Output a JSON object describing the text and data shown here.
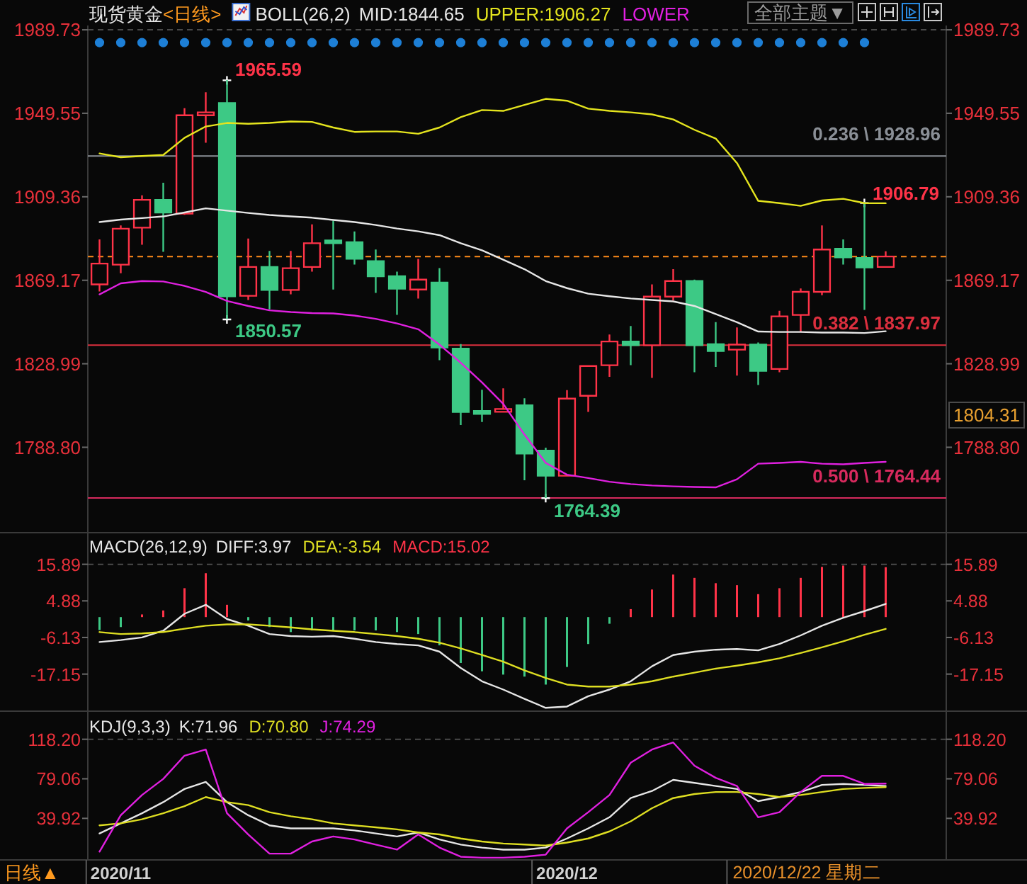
{
  "chart_data": [
    {
      "type": "candlestick",
      "title": "现货黄金",
      "subtitle": "<日线>",
      "legend_title": "BOLL(26,2)",
      "legend": "top",
      "tick_labels": "y",
      "categories": [
        null,
        null,
        null,
        null,
        null,
        null,
        null,
        null,
        null,
        null,
        null,
        null,
        null,
        null,
        null,
        null,
        null,
        null,
        null,
        null,
        null,
        null,
        null,
        null,
        null,
        null,
        null,
        null,
        null,
        null,
        null,
        null,
        null,
        null,
        null,
        null,
        null,
        null
      ],
      "ohlc": [
        [
          1867.2,
          1888.8,
          1863.8,
          1877.2
        ],
        [
          1876.7,
          1895.6,
          1872.6,
          1894.0
        ],
        [
          1894.5,
          1910.1,
          1886.3,
          1907.9
        ],
        [
          1907.9,
          1916.1,
          1882.9,
          1901.8
        ],
        [
          1901.3,
          1952.0,
          1900.7,
          1948.6
        ],
        [
          1948.6,
          1959.7,
          1935.4,
          1950.0
        ],
        [
          1954.5,
          1965.59,
          1850.57,
          1861.5
        ],
        [
          1861.7,
          1889.3,
          1859.7,
          1875.6
        ],
        [
          1875.6,
          1883.3,
          1855.2,
          1864.5
        ],
        [
          1864.5,
          1883.3,
          1862.4,
          1875.0
        ],
        [
          1875.6,
          1896.1,
          1873.3,
          1887.0
        ],
        [
          1887.9,
          1897.9,
          1864.7,
          1887.5
        ],
        [
          1887.5,
          1892.7,
          1876.7,
          1879.5
        ],
        [
          1878.4,
          1884.0,
          1863.1,
          1871.1
        ],
        [
          1871.1,
          1873.3,
          1852.5,
          1865.1
        ],
        [
          1864.7,
          1879.5,
          1860.4,
          1869.5
        ],
        [
          1868.1,
          1875.0,
          1830.7,
          1836.8
        ],
        [
          1836.3,
          1838.5,
          1799.5,
          1805.8
        ],
        [
          1805.8,
          1816.5,
          1801.0,
          1805.3
        ],
        [
          1806.1,
          1817.2,
          1805.6,
          1807.0
        ],
        [
          1809.0,
          1812.4,
          1772.9,
          1785.8
        ],
        [
          1787.2,
          1788.6,
          1764.39,
          1775.1
        ],
        [
          1775.1,
          1816.3,
          1774.7,
          1812.2
        ],
        [
          1813.6,
          1828.1,
          1805.8,
          1827.9
        ],
        [
          1828.3,
          1843.1,
          1822.7,
          1839.7
        ],
        [
          1839.7,
          1847.2,
          1828.3,
          1837.9
        ],
        [
          1837.9,
          1867.2,
          1822.2,
          1861.3
        ],
        [
          1861.3,
          1874.5,
          1859.5,
          1868.8
        ],
        [
          1868.8,
          1869.5,
          1824.9,
          1837.9
        ],
        [
          1838.4,
          1849.0,
          1827.5,
          1835.1
        ],
        [
          1835.8,
          1846.5,
          1823.3,
          1838.2
        ],
        [
          1838.2,
          1839.2,
          1818.8,
          1825.6
        ],
        [
          1826.5,
          1854.5,
          1824.9,
          1851.8
        ],
        [
          1852.5,
          1865.2,
          1844.5,
          1863.6
        ],
        [
          1863.6,
          1895.6,
          1862.0,
          1884.0
        ],
        [
          1884.3,
          1888.8,
          1876.7,
          1880.2
        ],
        [
          1879.9,
          1906.79,
          1854.9,
          1875.4
        ],
        [
          1875.6,
          1883.1,
          1875.6,
          1880.6
        ]
      ],
      "colors": [
        "#ff3348",
        "#ff3348",
        "#ff3348",
        "#3dc985",
        "#ff3348",
        "#ff3348",
        "#3dc985",
        "#ff3348",
        "#3dc985",
        "#ff3348",
        "#ff3348",
        "#3dc985",
        "#3dc985",
        "#3dc985",
        "#3dc985",
        "#ff3348",
        "#3dc985",
        "#3dc985",
        "#3dc985",
        "#ff3348",
        "#3dc985",
        "#3dc985",
        "#ff3348",
        "#ff3348",
        "#ff3348",
        "#3dc985",
        "#ff3348",
        "#ff3348",
        "#3dc985",
        "#3dc985",
        "#ff3348",
        "#3dc985",
        "#ff3348",
        "#ff3348",
        "#ff3348",
        "#3dc985",
        "#3dc985",
        "#ff3348"
      ],
      "series": [
        {
          "name": "MID:1844.65",
          "type": "line",
          "color": "#e6e6e6",
          "values": [
            1897.2,
            1898.4,
            1899.1,
            1899.9,
            1901.8,
            1903.8,
            1902.7,
            1901.6,
            1900.6,
            1899.9,
            1899.3,
            1898.2,
            1897.2,
            1895.8,
            1894.1,
            1892.7,
            1890.9,
            1887.0,
            1883.6,
            1879.1,
            1874.5,
            1868.8,
            1865.4,
            1862.7,
            1861.5,
            1860.4,
            1859.7,
            1859.0,
            1856.8,
            1852.9,
            1849.0,
            1844.5,
            1844.3,
            1844.3,
            1844.0,
            1844.0,
            1843.8,
            1844.65
          ]
        },
        {
          "name": "UPPER:1906.27",
          "type": "line",
          "color": "#e4e41e",
          "values": [
            1930.2,
            1928.4,
            1929.0,
            1929.5,
            1937.7,
            1943.2,
            1944.9,
            1944.5,
            1944.9,
            1945.6,
            1945.4,
            1942.7,
            1940.6,
            1940.8,
            1940.8,
            1939.7,
            1942.7,
            1947.7,
            1951.1,
            1950.7,
            1953.6,
            1956.5,
            1955.6,
            1951.8,
            1950.7,
            1950.0,
            1949.0,
            1946.6,
            1941.6,
            1937.4,
            1925.6,
            1907.4,
            1906.3,
            1905.0,
            1907.6,
            1908.4,
            1906.3,
            1906.27
          ]
        },
        {
          "name": "LOWER",
          "type": "line",
          "color": "#e020e0",
          "values": [
            1862.4,
            1867.7,
            1868.8,
            1868.6,
            1866.5,
            1863.6,
            1859.2,
            1856.8,
            1854.7,
            1853.9,
            1853.4,
            1853.2,
            1852.2,
            1850.6,
            1848.4,
            1845.6,
            1838.2,
            1829.5,
            1820.0,
            1809.7,
            1794.9,
            1781.3,
            1775.6,
            1774.0,
            1772.2,
            1771.1,
            1770.4,
            1770.0,
            1769.7,
            1769.5,
            1773.4,
            1780.9,
            1781.3,
            1781.8,
            1780.9,
            1780.6,
            1781.3,
            1781.8
          ]
        },
        {
          "type": "scatter",
          "marker": "circle",
          "color": "#1d7fd6",
          "values": [
            1983.6,
            1983.6,
            1983.6,
            1983.6,
            1983.6,
            1983.6,
            1983.6,
            1983.6,
            1983.6,
            1983.6,
            1983.6,
            1983.6,
            1983.6,
            1983.6,
            1983.6,
            1983.6,
            1983.6,
            1983.6,
            1983.6,
            1983.6,
            1983.6,
            1983.6,
            1983.6,
            1983.6,
            1983.6,
            1983.6,
            1983.6,
            1983.6,
            1983.6,
            1983.6,
            1983.6,
            1983.6,
            1983.6,
            1983.6,
            1983.6,
            1983.6,
            1983.6,
            null
          ]
        }
      ],
      "ylim": [
        1747.7,
        1991.8
      ],
      "yticks": [
        1989.73,
        1949.55,
        1909.36,
        1869.17,
        1828.99,
        {
          "value": 1788.8,
          "label": "1788.80"
        }
      ],
      "y2lim": [
        1747.7,
        1991.8
      ],
      "y2ticks": [
        1989.73,
        1949.55,
        1909.36,
        1869.17,
        1828.99,
        {
          "value": 1788.8,
          "label": "1788.80"
        }
      ],
      "ref_lines": [
        {
          "axis": "y",
          "value": 1989.73,
          "color": "#4a4a4a",
          "line_style": "dashed"
        },
        {
          "axis": "y",
          "value": 1928.96,
          "label": "0.236 \\ 1928.96",
          "color": "#8a8f96"
        },
        {
          "axis": "y",
          "value": 1880.6,
          "color": "#ff8c1a",
          "line_style": "dashed"
        },
        {
          "axis": "y",
          "value": 1837.97,
          "label": "0.382 \\ 1837.97",
          "color": "#dc2f3e"
        },
        {
          "axis": "y",
          "value": 1764.44,
          "label": "0.500 \\ 1764.44",
          "color": "#d82a5e"
        }
      ],
      "annotations": [
        "1965.59",
        "1850.57",
        "1906.79",
        "1764.39",
        "1804.31",
        "全部主题▼"
      ]
    },
    {
      "type": "bar",
      "legend_title": "MACD(26,12,9)",
      "legend": "top",
      "tick_labels": "y",
      "categories": [
        null,
        null,
        null,
        null,
        null,
        null,
        null,
        null,
        null,
        null,
        null,
        null,
        null,
        null,
        null,
        null,
        null,
        null,
        null,
        null,
        null,
        null,
        null,
        null,
        null,
        null,
        null,
        null,
        null,
        null,
        null,
        null,
        null,
        null,
        null,
        null,
        null,
        null
      ],
      "series": [
        {
          "name": "DIFF:3.97",
          "type": "line",
          "color": "#e6e6e6",
          "values": [
            -7.5,
            -6.9,
            -6.1,
            -4.1,
            1.0,
            3.7,
            -0.6,
            -2.6,
            -5.1,
            -5.7,
            -5.9,
            -5.7,
            -6.5,
            -7.5,
            -8.1,
            -8.5,
            -10.4,
            -15.3,
            -19.3,
            -21.8,
            -24.6,
            -27.3,
            -26.9,
            -23.8,
            -21.8,
            -19.3,
            -14.8,
            -11.4,
            -10.4,
            -9.8,
            -9.6,
            -10.0,
            -8.1,
            -5.5,
            -2.6,
            -0.2,
            1.8,
            3.97
          ]
        },
        {
          "name": "DEA:-3.54",
          "type": "line",
          "color": "#dede22",
          "values": [
            -4.5,
            -5.1,
            -4.9,
            -4.5,
            -3.5,
            -2.6,
            -2.2,
            -2.2,
            -2.6,
            -3.1,
            -3.7,
            -4.1,
            -4.5,
            -5.1,
            -5.7,
            -6.5,
            -7.7,
            -9.4,
            -11.4,
            -13.4,
            -16.0,
            -18.3,
            -20.3,
            -20.9,
            -20.9,
            -20.3,
            -19.3,
            -17.9,
            -16.7,
            -15.5,
            -14.6,
            -13.6,
            -12.4,
            -10.8,
            -9.1,
            -7.3,
            -5.3,
            -3.54
          ]
        },
        {
          "name": "MACD:15.02",
          "color": "#ff3348",
          "colors": [
            "#3dc985",
            "#3dc985",
            "#ff3348",
            "#ff3348",
            "#ff3348",
            "#ff3348",
            "#ff3348",
            "#3dc985",
            "#3dc985",
            "#3dc985",
            "#3dc985",
            "#3dc985",
            "#3dc985",
            "#3dc985",
            "#3dc985",
            "#3dc985",
            "#3dc985",
            "#3dc985",
            "#3dc985",
            "#3dc985",
            "#3dc985",
            "#3dc985",
            "#3dc985",
            "#3dc985",
            "#3dc985",
            "#ff3348",
            "#ff3348",
            "#ff3348",
            "#ff3348",
            "#ff3348",
            "#ff3348",
            "#ff3348",
            "#ff3348",
            "#ff3348",
            "#ff3348",
            "#ff3348",
            "#ff3348",
            "#ff3348"
          ],
          "values": [
            -3.9,
            -3.0,
            0.8,
            2.0,
            8.7,
            13.2,
            3.7,
            -1.0,
            -3.0,
            -4.5,
            -4.0,
            -4.0,
            -4.0,
            -4.0,
            -4.5,
            -5.1,
            -8.5,
            -13.8,
            -16.3,
            -17.3,
            -17.9,
            -20.3,
            -15.0,
            -8.1,
            -2.0,
            2.4,
            8.3,
            12.8,
            11.8,
            10.2,
            9.6,
            6.9,
            8.7,
            11.8,
            15.1,
            15.5,
            15.5,
            15.02
          ]
        }
      ],
      "ylim": [
        -28.3,
        25.4
      ],
      "yticks": [
        15.89,
        4.88,
        -6.13,
        -17.15
      ],
      "y2lim": [
        -28.3,
        25.4
      ],
      "y2ticks": [
        15.89,
        4.88,
        -6.13,
        -17.15
      ],
      "ref_lines": [
        {
          "axis": "y",
          "value": 15.89,
          "color": "#4a4a4a",
          "line_style": "dashed"
        }
      ]
    },
    {
      "type": "line",
      "legend_title": "KDJ(9,3,3)",
      "legend": "top",
      "categories": [
        null,
        "2020/11",
        null,
        null,
        null,
        null,
        null,
        null,
        null,
        null,
        null,
        null,
        null,
        null,
        null,
        null,
        null,
        null,
        null,
        null,
        null,
        null,
        "2020/12",
        null,
        null,
        null,
        null,
        null,
        null,
        null,
        null,
        null,
        null,
        null,
        null,
        null,
        null,
        null
      ],
      "series": [
        {
          "name": "K:71.96",
          "color": "#e6e6e6",
          "values": [
            25,
            35,
            45,
            56,
            69,
            76,
            56,
            43,
            33,
            30,
            30,
            30,
            28,
            25,
            22,
            26,
            19,
            14,
            11,
            9,
            9,
            11,
            20,
            30,
            41,
            60,
            67,
            78,
            75,
            72,
            69,
            57,
            61,
            66,
            73,
            74,
            73,
            71.96
          ]
        },
        {
          "name": "D:70.80",
          "color": "#dede22",
          "values": [
            33,
            35,
            39,
            45,
            52,
            61,
            56,
            53,
            46,
            42,
            39,
            35,
            33,
            31,
            29,
            26,
            24,
            20,
            17,
            15,
            14,
            13,
            16,
            20,
            27,
            37,
            50,
            60,
            64,
            66,
            66,
            64,
            61,
            63,
            66,
            69,
            70,
            70.8
          ]
        },
        {
          "name": "J:74.29",
          "color": "#e020e0",
          "values": [
            7,
            43,
            63,
            79,
            102,
            108,
            45,
            24,
            5,
            5,
            17,
            22,
            19,
            14,
            9,
            24,
            11,
            2,
            1,
            1,
            2,
            4,
            30,
            46,
            63,
            95,
            108,
            115,
            92,
            80,
            72,
            41,
            46,
            66,
            82,
            82,
            74,
            74.29
          ]
        }
      ],
      "ylim": [
        -1.2,
        146
      ],
      "yticks": [
        {
          "value": 118.2,
          "label": "118.20"
        },
        79.06,
        39.92
      ],
      "y2lim": [
        -1.2,
        146
      ],
      "y2ticks": [
        {
          "value": 118.2,
          "label": "118.20"
        },
        79.06,
        39.92
      ],
      "ref_lines": [
        {
          "axis": "y",
          "value": 118.2,
          "color": "#4a4a4a",
          "line_style": "dashed"
        }
      ],
      "annotations": [
        "日线▲",
        "2020/12/22 星期二"
      ]
    }
  ]
}
